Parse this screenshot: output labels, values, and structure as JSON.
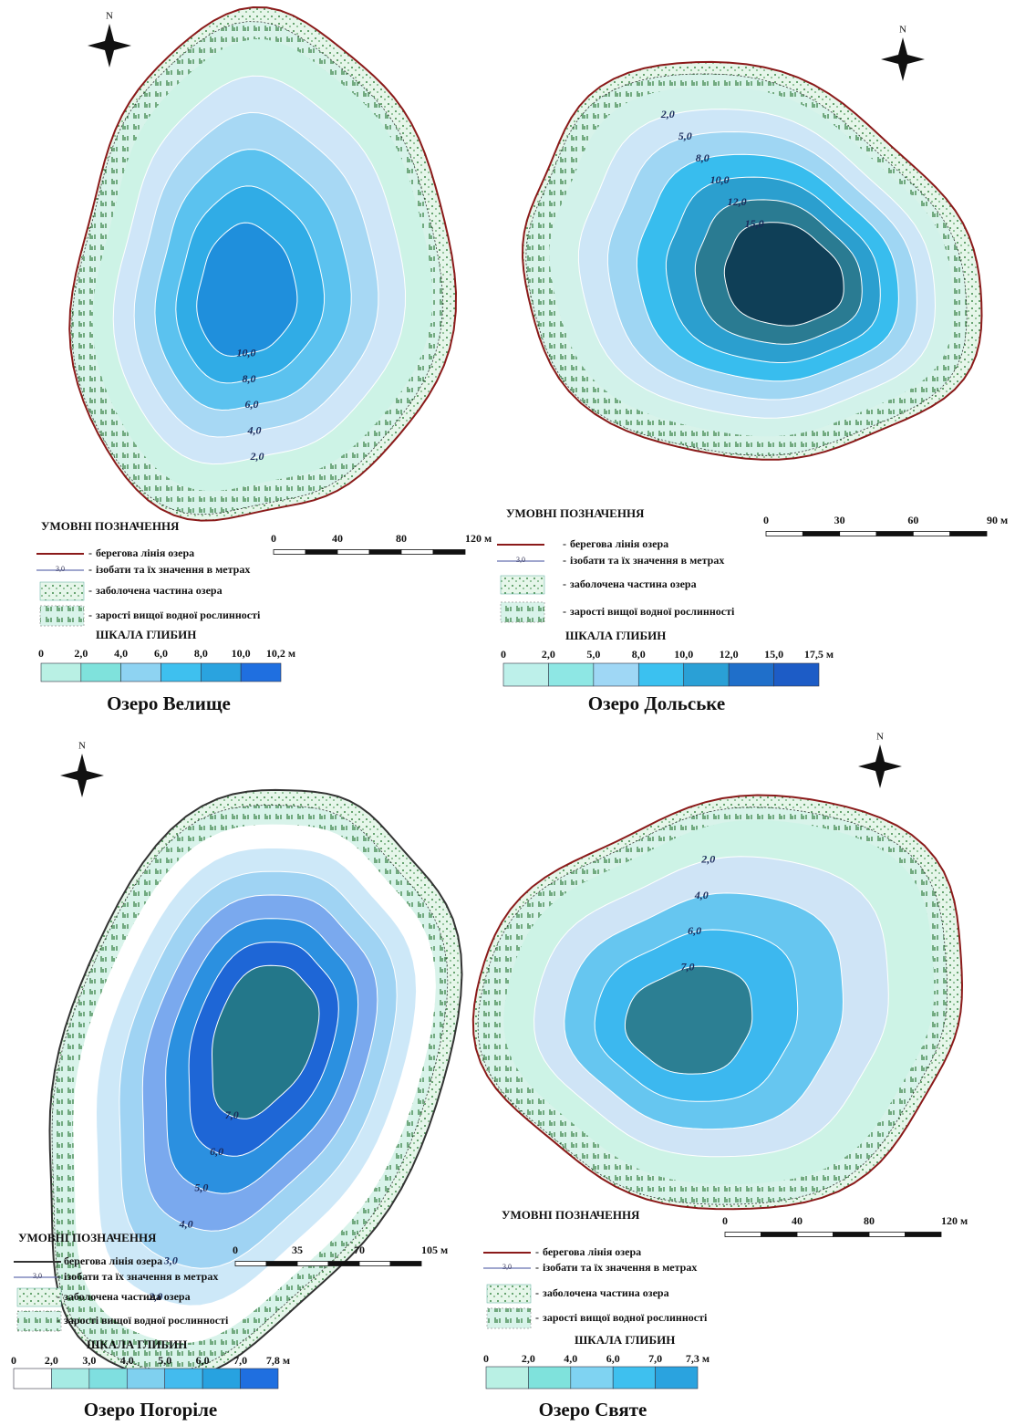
{
  "maps": [
    {
      "title": "Озеро Велище",
      "north": "N",
      "isobaths": [
        "2,0",
        "4,0",
        "6,0",
        "8,0",
        "10,0"
      ],
      "legend": {
        "title": "УМОВНІ ПОЗНАЧЕННЯ",
        "sample": "3,0",
        "items": [
          "берегова лінія озера",
          "ізобати та їх значення в метрах",
          "заболочена частина озера",
          "зарості вищої водної рослинності"
        ]
      },
      "scale_bar": [
        "0",
        "40",
        "80",
        "120 м"
      ],
      "depth_scale": {
        "title": "ШКАЛА ГЛИБИН",
        "labels": [
          "0",
          "2,0",
          "4,0",
          "6,0",
          "8,0",
          "10,0",
          "10,2 м"
        ]
      }
    },
    {
      "title": "Озеро Дольське",
      "north": "N",
      "isobaths": [
        "2,0",
        "5,0",
        "8,0",
        "10,0",
        "12,0",
        "15,0"
      ],
      "legend": {
        "title": "УМОВНІ ПОЗНАЧЕННЯ",
        "sample": "3,0",
        "items": [
          "берегова лінія озера",
          "ізобати та їх значення в метрах",
          "заболочена частина озера",
          "зарості вищої водної рослинності"
        ]
      },
      "scale_bar": [
        "0",
        "30",
        "60",
        "90 м"
      ],
      "depth_scale": {
        "title": "ШКАЛА ГЛИБИН",
        "labels": [
          "0",
          "2,0",
          "5,0",
          "8,0",
          "10,0",
          "12,0",
          "15,0",
          "17,5 м"
        ]
      }
    },
    {
      "title": "Озеро Погоріле",
      "north": "N",
      "isobaths": [
        "2,0",
        "3,0",
        "4,0",
        "5,0",
        "6,0",
        "7,0"
      ],
      "legend": {
        "title": "УМОВНІ ПОЗНАЧЕННЯ",
        "sample": "3,0",
        "items": [
          "берегова лінія озера",
          "ізобати та їх значення в метрах",
          "заболочена частина озера",
          "зарості вищої водної рослинності"
        ]
      },
      "scale_bar": [
        "0",
        "35",
        "70",
        "105 м"
      ],
      "depth_scale": {
        "title": "ШКАЛА ГЛИБИН",
        "labels": [
          "0",
          "2,0",
          "3,0",
          "4,0",
          "5,0",
          "6,0",
          "7,0",
          "7,8 м"
        ]
      }
    },
    {
      "title": "Озеро Святе",
      "north": "N",
      "isobaths": [
        "2,0",
        "4,0",
        "6,0",
        "7,0"
      ],
      "legend": {
        "title": "УМОВНІ ПОЗНАЧЕННЯ",
        "sample": "3,0",
        "items": [
          "берегова лінія озера",
          "ізобати та їх значення в метрах",
          "заболочена частина озера",
          "зарості вищої водної рослинності"
        ]
      },
      "scale_bar": [
        "0",
        "40",
        "80",
        "120 м"
      ],
      "depth_scale": {
        "title": "ШКАЛА ГЛИБИН",
        "labels": [
          "0",
          "2,0",
          "4,0",
          "6,0",
          "7,0",
          "7,3 м"
        ]
      }
    }
  ]
}
